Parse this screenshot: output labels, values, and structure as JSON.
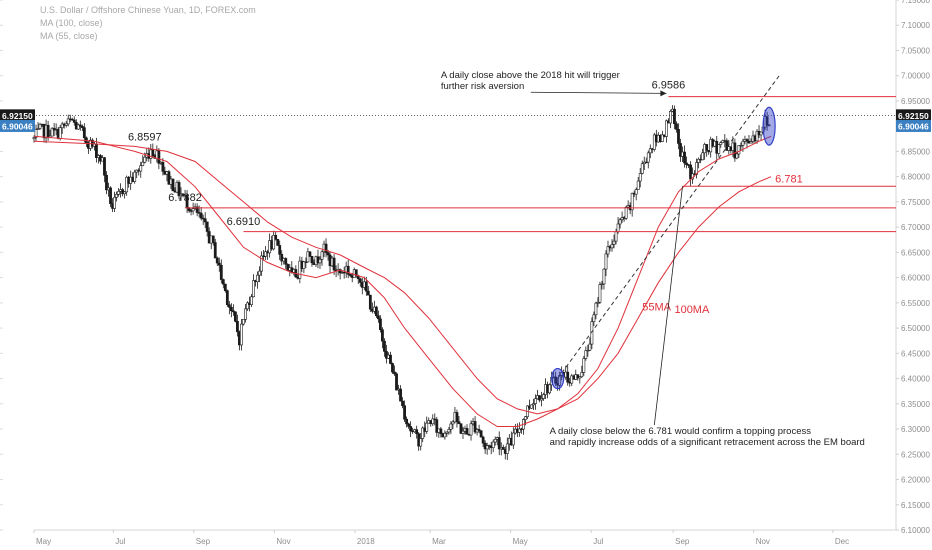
{
  "legend": {
    "symbol": "U.S. Dollar / Offshore Chinese Yuan, 1D, FOREX.com",
    "ma1": "MA (100, close)",
    "ma2": "MA (55, close)"
  },
  "colors": {
    "candle": "#1a1a1a",
    "ma": "#e0313b",
    "level": "#e0313b",
    "ellipse": "#3340c8",
    "price_badge": "#1a1a1a",
    "prev_badge": "#3a7fc2",
    "dotted": "#333333"
  },
  "chart_data": {
    "type": "candlestick",
    "y_axis": {
      "range": [
        6.1,
        7.15
      ],
      "ticks": [
        "7.15000",
        "7.10000",
        "7.05000",
        "7.00000",
        "6.95000",
        "6.90000",
        "6.85000",
        "6.80000",
        "6.75000",
        "6.70000",
        "6.65000",
        "6.60000",
        "6.55000",
        "6.50000",
        "6.45000",
        "6.40000",
        "6.35000",
        "6.30000",
        "6.25000",
        "6.20000",
        "6.15000",
        "6.10000"
      ],
      "position": "right"
    },
    "x_axis": {
      "labels": [
        "May",
        "Jul",
        "Sep",
        "Nov",
        "2018",
        "Mar",
        "May",
        "Jul",
        "Sep",
        "Nov",
        "Dec"
      ],
      "positions": [
        0,
        1.967,
        3.967,
        5.967,
        7.967,
        9.833,
        11.833,
        13.833,
        15.867,
        17.867,
        19.833
      ],
      "unit": "months since May 2017",
      "range": [
        0,
        21.4
      ]
    },
    "price_path": [
      [
        0,
        6.875
      ],
      [
        0.15,
        6.89
      ],
      [
        0.35,
        6.89
      ],
      [
        0.55,
        6.885
      ],
      [
        0.75,
        6.9
      ],
      [
        0.95,
        6.91
      ],
      [
        1.15,
        6.89
      ],
      [
        1.35,
        6.87
      ],
      [
        1.55,
        6.85
      ],
      [
        1.7,
        6.83
      ],
      [
        1.8,
        6.78
      ],
      [
        1.95,
        6.74
      ],
      [
        2.1,
        6.76
      ],
      [
        2.3,
        6.79
      ],
      [
        2.5,
        6.8
      ],
      [
        2.7,
        6.83
      ],
      [
        2.9,
        6.855
      ],
      [
        3.1,
        6.84
      ],
      [
        3.3,
        6.8
      ],
      [
        3.5,
        6.78
      ],
      [
        3.7,
        6.76
      ],
      [
        3.9,
        6.74
      ],
      [
        4.1,
        6.72
      ],
      [
        4.3,
        6.69
      ],
      [
        4.5,
        6.65
      ],
      [
        4.65,
        6.6
      ],
      [
        4.8,
        6.56
      ],
      [
        4.95,
        6.52
      ],
      [
        5.1,
        6.48
      ],
      [
        5.2,
        6.52
      ],
      [
        5.35,
        6.56
      ],
      [
        5.5,
        6.6
      ],
      [
        5.65,
        6.63
      ],
      [
        5.8,
        6.66
      ],
      [
        5.95,
        6.67
      ],
      [
        6.1,
        6.65
      ],
      [
        6.25,
        6.63
      ],
      [
        6.4,
        6.6
      ],
      [
        6.55,
        6.61
      ],
      [
        6.7,
        6.64
      ],
      [
        6.85,
        6.65
      ],
      [
        7.0,
        6.63
      ],
      [
        7.15,
        6.66
      ],
      [
        7.3,
        6.64
      ],
      [
        7.45,
        6.62
      ],
      [
        7.6,
        6.61
      ],
      [
        7.75,
        6.62
      ],
      [
        7.9,
        6.6
      ],
      [
        8.05,
        6.61
      ],
      [
        8.2,
        6.58
      ],
      [
        8.35,
        6.55
      ],
      [
        8.5,
        6.52
      ],
      [
        8.65,
        6.48
      ],
      [
        8.8,
        6.44
      ],
      [
        8.95,
        6.4
      ],
      [
        9.1,
        6.36
      ],
      [
        9.25,
        6.32
      ],
      [
        9.4,
        6.29
      ],
      [
        9.55,
        6.28
      ],
      [
        9.7,
        6.3
      ],
      [
        9.85,
        6.32
      ],
      [
        10.0,
        6.3
      ],
      [
        10.15,
        6.29
      ],
      [
        10.3,
        6.31
      ],
      [
        10.45,
        6.32
      ],
      [
        10.6,
        6.3
      ],
      [
        10.75,
        6.29
      ],
      [
        10.9,
        6.31
      ],
      [
        11.05,
        6.3
      ],
      [
        11.2,
        6.26
      ],
      [
        11.35,
        6.27
      ],
      [
        11.5,
        6.28
      ],
      [
        11.65,
        6.26
      ],
      [
        11.8,
        6.27
      ],
      [
        11.95,
        6.29
      ],
      [
        12.1,
        6.31
      ],
      [
        12.25,
        6.34
      ],
      [
        12.4,
        6.36
      ],
      [
        12.55,
        6.37
      ],
      [
        12.7,
        6.38
      ],
      [
        12.85,
        6.39
      ],
      [
        13.0,
        6.4
      ],
      [
        13.15,
        6.41
      ],
      [
        13.3,
        6.4
      ],
      [
        13.45,
        6.4
      ],
      [
        13.6,
        6.42
      ],
      [
        13.75,
        6.46
      ],
      [
        13.9,
        6.52
      ],
      [
        14.05,
        6.58
      ],
      [
        14.2,
        6.64
      ],
      [
        14.35,
        6.67
      ],
      [
        14.5,
        6.7
      ],
      [
        14.65,
        6.72
      ],
      [
        14.8,
        6.74
      ],
      [
        14.95,
        6.78
      ],
      [
        15.1,
        6.82
      ],
      [
        15.25,
        6.85
      ],
      [
        15.4,
        6.87
      ],
      [
        15.55,
        6.88
      ],
      [
        15.7,
        6.9
      ],
      [
        15.8,
        6.94
      ],
      [
        15.9,
        6.9
      ],
      [
        16.0,
        6.86
      ],
      [
        16.1,
        6.84
      ],
      [
        16.2,
        6.82
      ],
      [
        16.35,
        6.8
      ],
      [
        16.5,
        6.83
      ],
      [
        16.65,
        6.85
      ],
      [
        16.8,
        6.86
      ],
      [
        16.95,
        6.86
      ],
      [
        17.1,
        6.87
      ],
      [
        17.25,
        6.86
      ],
      [
        17.4,
        6.85
      ],
      [
        17.55,
        6.86
      ],
      [
        17.7,
        6.87
      ],
      [
        17.85,
        6.88
      ],
      [
        18.0,
        6.89
      ],
      [
        18.15,
        6.91
      ],
      [
        18.3,
        6.9
      ]
    ],
    "ma55": [
      [
        0,
        6.88
      ],
      [
        1.5,
        6.87
      ],
      [
        2.5,
        6.85
      ],
      [
        3.3,
        6.83
      ],
      [
        4.0,
        6.78
      ],
      [
        4.6,
        6.72
      ],
      [
        5.2,
        6.66
      ],
      [
        5.8,
        6.63
      ],
      [
        6.4,
        6.61
      ],
      [
        7.0,
        6.6
      ],
      [
        7.6,
        6.615
      ],
      [
        8.2,
        6.6
      ],
      [
        8.7,
        6.56
      ],
      [
        9.2,
        6.5
      ],
      [
        9.8,
        6.44
      ],
      [
        10.4,
        6.38
      ],
      [
        11.0,
        6.33
      ],
      [
        11.5,
        6.305
      ],
      [
        12.0,
        6.305
      ],
      [
        12.5,
        6.32
      ],
      [
        13.0,
        6.34
      ],
      [
        13.5,
        6.37
      ],
      [
        14.0,
        6.42
      ],
      [
        14.5,
        6.5
      ],
      [
        15.0,
        6.6
      ],
      [
        15.5,
        6.7
      ],
      [
        16.0,
        6.77
      ],
      [
        16.5,
        6.81
      ],
      [
        17.0,
        6.835
      ],
      [
        17.5,
        6.85
      ],
      [
        18.0,
        6.87
      ],
      [
        18.3,
        6.88
      ]
    ],
    "ma100": [
      [
        0,
        6.87
      ],
      [
        1.5,
        6.865
      ],
      [
        2.5,
        6.86
      ],
      [
        3.3,
        6.85
      ],
      [
        4.0,
        6.83
      ],
      [
        4.6,
        6.79
      ],
      [
        5.2,
        6.75
      ],
      [
        5.8,
        6.71
      ],
      [
        6.4,
        6.68
      ],
      [
        7.0,
        6.66
      ],
      [
        7.6,
        6.645
      ],
      [
        8.2,
        6.62
      ],
      [
        8.7,
        6.6
      ],
      [
        9.2,
        6.57
      ],
      [
        9.8,
        6.52
      ],
      [
        10.4,
        6.46
      ],
      [
        11.0,
        6.4
      ],
      [
        11.5,
        6.36
      ],
      [
        12.0,
        6.34
      ],
      [
        12.5,
        6.33
      ],
      [
        13.0,
        6.34
      ],
      [
        13.5,
        6.36
      ],
      [
        14.0,
        6.4
      ],
      [
        14.5,
        6.45
      ],
      [
        15.0,
        6.52
      ],
      [
        15.5,
        6.59
      ],
      [
        16.0,
        6.65
      ],
      [
        16.5,
        6.7
      ],
      [
        17.0,
        6.74
      ],
      [
        17.5,
        6.77
      ],
      [
        18.0,
        6.79
      ],
      [
        18.3,
        6.8
      ]
    ],
    "levels": [
      {
        "value": 6.9586,
        "label": "6.9586",
        "from": 15.75
      },
      {
        "value": 6.781,
        "label": "6.781",
        "from": 16.1
      },
      {
        "value": 6.7382,
        "label": "6.7382",
        "from": 3.75
      },
      {
        "value": 6.691,
        "label": "6.6910",
        "from": 5.2
      }
    ],
    "point_labels": [
      {
        "label": "6.8597",
        "x": 2.75,
        "y": 6.872
      },
      {
        "label": "6.7382",
        "x": 3.75,
        "y": 6.752
      },
      {
        "label": "6.6910",
        "x": 5.2,
        "y": 6.704
      },
      {
        "label": "6.9586",
        "x": 15.75,
        "y": 6.975
      }
    ],
    "ma_labels": [
      {
        "label": "55MA",
        "x": 15.1,
        "y": 6.535
      },
      {
        "label": "100MA",
        "x": 15.9,
        "y": 6.53
      }
    ],
    "current_price": {
      "value": 6.9215,
      "label": "6.92150"
    },
    "prev_close": {
      "value": 6.90046,
      "label": "6.90046"
    },
    "trendline": [
      [
        13.0,
        6.4
      ],
      [
        18.5,
        7.0
      ]
    ],
    "ellipses": [
      {
        "x": 13.0,
        "y": 6.4,
        "h": 0.04
      },
      {
        "x": 18.25,
        "y": 6.9,
        "h": 0.075
      }
    ],
    "annotations": [
      {
        "id": "top",
        "lines": [
          "A daily close above the 2018 hit will trigger",
          "further risk aversion"
        ],
        "x": 10.1,
        "y": 6.995,
        "arrow_to": [
          15.7,
          6.965
        ]
      },
      {
        "id": "bottom",
        "lines": [
          "A daily close below the 6.781 would confirm a topping process",
          "and rapidly increase odds of a significant retracement across the EM board"
        ],
        "x": 12.8,
        "y": 6.29,
        "pointer_from": [
          15.4,
          6.3
        ],
        "pointer_to": [
          16.1,
          6.781
        ]
      }
    ]
  }
}
